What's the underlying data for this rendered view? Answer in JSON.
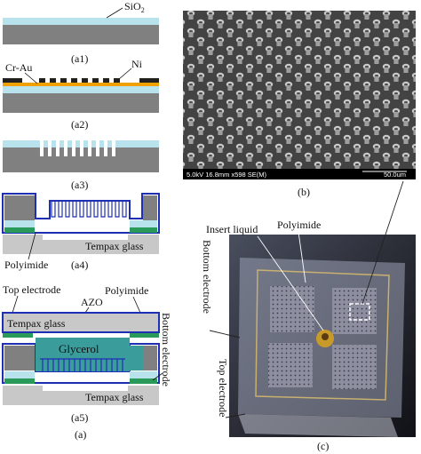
{
  "figure": {
    "panel_labels": {
      "a1": "(a1)",
      "a2": "(a2)",
      "a3": "(a3)",
      "a4": "(a4)",
      "a5": "(a5)",
      "a": "(a)",
      "b": "(b)",
      "c": "(c)"
    },
    "a1": {
      "sio2_prefix": "SiO",
      "sio2_sub": "2"
    },
    "a2": {
      "cr_au": "Cr-Au",
      "ni": "Ni"
    },
    "a4": {
      "tempax": "Tempax glass",
      "polyimide": "Polyimide"
    },
    "a5": {
      "top_electrode": "Top electrode",
      "azo": "AZO",
      "polyimide": "Polyimide",
      "tempax_top": "Tempax glass",
      "glycerol": "Glycerol",
      "tempax_bottom": "Tempax glass",
      "bottom_electrode": "Bottom electrode"
    },
    "sem": {
      "info": "5.0kV 16.8mm x598 SE(M)",
      "scale": "50.0um"
    },
    "photo": {
      "insert_liquid": "Insert liquid",
      "polyimide": "Polyimide",
      "bottom_electrode": "Bottom electrode",
      "top_electrode": "Top electrode"
    },
    "colors": {
      "silicon": "#808080",
      "sio2": "#b9e3ec",
      "gold": "#f0a000",
      "nickel": "#202020",
      "glass": "#c8c8c8",
      "polyimide": "#1e2fb4",
      "electrode": "#2a9a5a",
      "glycerol": "#3b9c9c"
    }
  }
}
